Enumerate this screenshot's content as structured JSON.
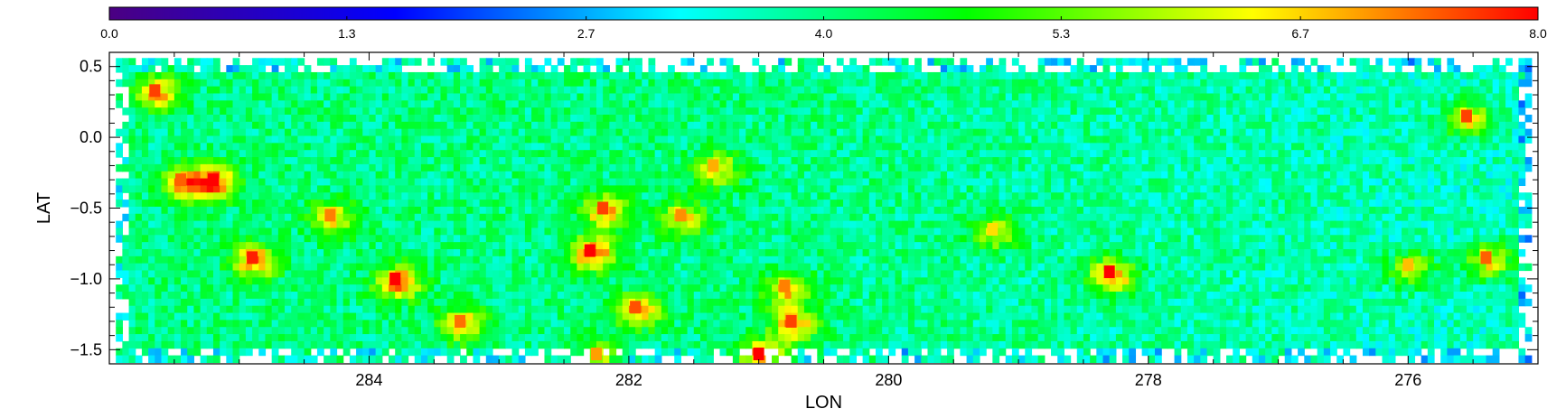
{
  "chart_data": {
    "type": "heatmap",
    "colorbar": {
      "min": 0.0,
      "max": 8.0,
      "ticks": [
        "0.0",
        "1.3",
        "2.7",
        "4.0",
        "5.3",
        "6.7",
        "8.0"
      ],
      "tick_values": [
        0.0,
        1.33,
        2.67,
        4.0,
        5.33,
        6.67,
        8.0
      ],
      "colormap": [
        "#4b0082",
        "#0000ff",
        "#00ffff",
        "#00ff00",
        "#ffff00",
        "#ff0000"
      ]
    },
    "xlabel": "LON",
    "ylabel": "LAT",
    "xlim": [
      286,
      275
    ],
    "ylim": [
      -1.6,
      0.6
    ],
    "xticks": [
      284,
      282,
      280,
      278,
      276
    ],
    "xtick_labels": [
      "284",
      "282",
      "280",
      "278",
      "276"
    ],
    "yticks": [
      0.5,
      0.0,
      -0.5,
      -1.0,
      -1.5
    ],
    "ytick_labels": [
      "0.5",
      "0.0",
      "−0.5",
      "−1.0",
      "−1.5"
    ],
    "data_extent": {
      "lon": [
        285.95,
        275.1
      ],
      "lat": [
        -1.55,
        0.56
      ]
    },
    "background_level": {
      "east_lon_286_to_281": 4.0,
      "west_lon_280_to_275": 3.6
    },
    "hotspots": [
      {
        "lon": 285.65,
        "lat": 0.33,
        "value": 7.6
      },
      {
        "lon": 285.2,
        "lat": -0.3,
        "value": 8.0
      },
      {
        "lon": 285.45,
        "lat": -0.3,
        "value": 7.4
      },
      {
        "lon": 284.9,
        "lat": -0.85,
        "value": 7.8
      },
      {
        "lon": 284.3,
        "lat": -0.55,
        "value": 7.2
      },
      {
        "lon": 283.8,
        "lat": -1.0,
        "value": 8.0
      },
      {
        "lon": 283.3,
        "lat": -1.3,
        "value": 7.3
      },
      {
        "lon": 282.3,
        "lat": -0.8,
        "value": 8.0
      },
      {
        "lon": 282.2,
        "lat": -0.5,
        "value": 7.6
      },
      {
        "lon": 281.95,
        "lat": -1.2,
        "value": 7.5
      },
      {
        "lon": 281.6,
        "lat": -0.55,
        "value": 7.1
      },
      {
        "lon": 281.0,
        "lat": -1.53,
        "value": 8.0
      },
      {
        "lon": 280.75,
        "lat": -1.3,
        "value": 7.6
      },
      {
        "lon": 280.8,
        "lat": -1.05,
        "value": 7.2
      },
      {
        "lon": 282.25,
        "lat": -1.53,
        "value": 7.0
      },
      {
        "lon": 281.35,
        "lat": -0.2,
        "value": 6.9
      },
      {
        "lon": 278.3,
        "lat": -0.95,
        "value": 8.0
      },
      {
        "lon": 275.55,
        "lat": 0.15,
        "value": 7.6
      },
      {
        "lon": 275.4,
        "lat": -0.85,
        "value": 7.4
      },
      {
        "lon": 276.0,
        "lat": -0.9,
        "value": 6.8
      },
      {
        "lon": 279.2,
        "lat": -0.65,
        "value": 6.6
      }
    ]
  }
}
